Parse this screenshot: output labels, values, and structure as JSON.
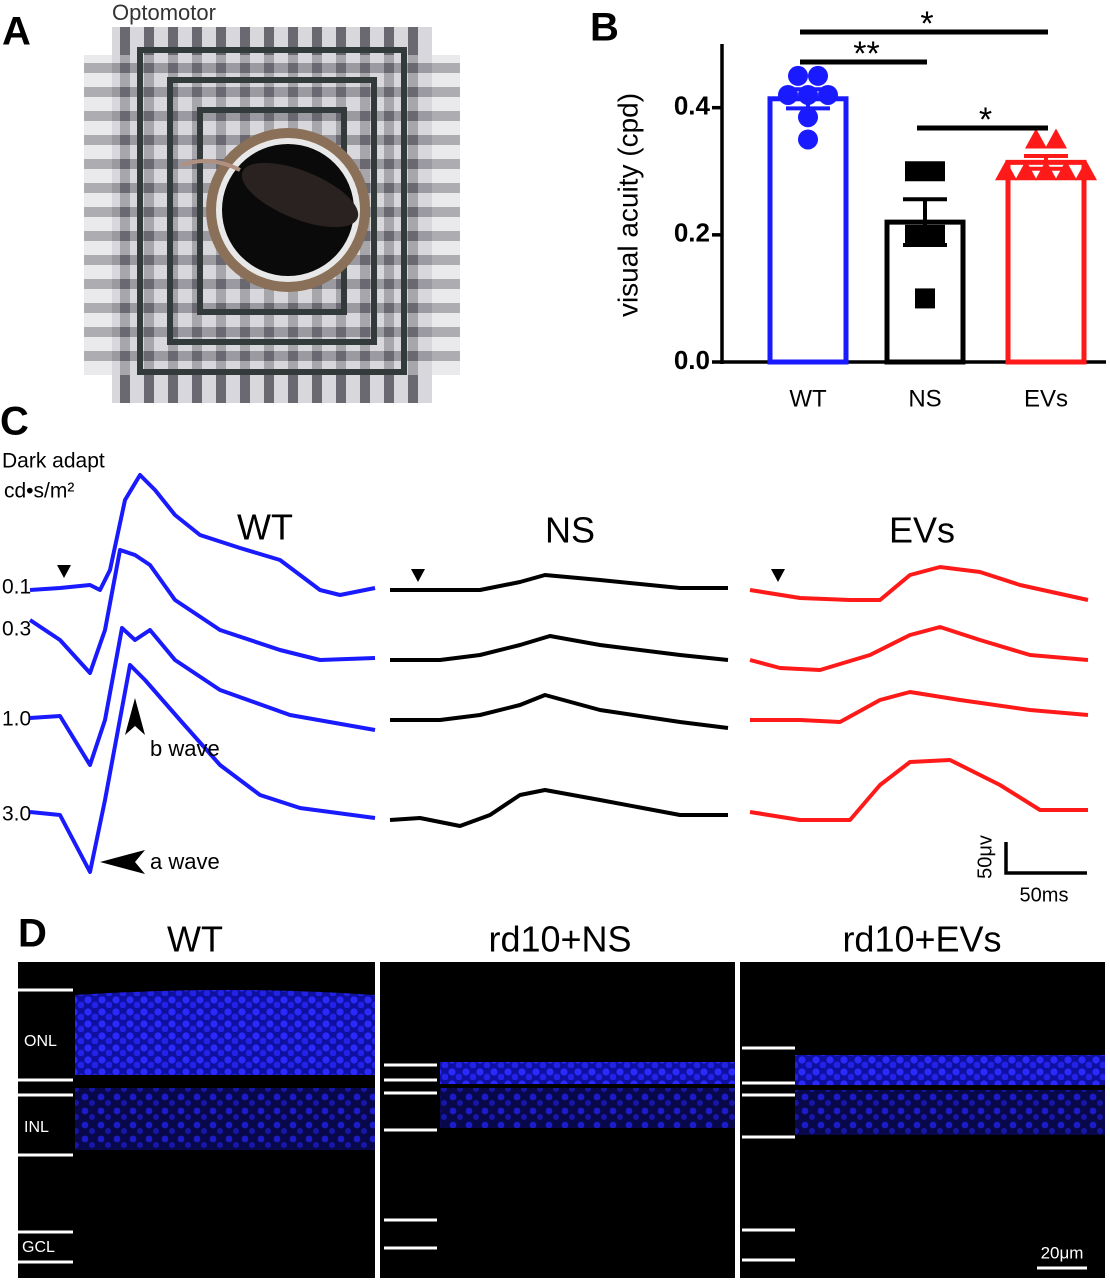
{
  "panel_labels": [
    "A",
    "B",
    "C",
    "D"
  ],
  "panel_a": {
    "title": "Optomotor"
  },
  "chart_data": {
    "type": "bar",
    "ylabel": "visual acuity (cpd)",
    "categories": [
      "WT",
      "NS",
      "EVs"
    ],
    "values": [
      0.414,
      0.22,
      0.314
    ],
    "errors": [
      0.015,
      0.036,
      0.01
    ],
    "points": [
      [
        0.45,
        0.45,
        0.42,
        0.42,
        0.42,
        0.385,
        0.35
      ],
      [
        0.3,
        0.3,
        0.2,
        0.2,
        0.1
      ],
      [
        0.35,
        0.35,
        0.3,
        0.3,
        0.3,
        0.3,
        0.3
      ]
    ],
    "markers": [
      "circle",
      "square",
      "triangle"
    ],
    "colors": [
      "#1a1aff",
      "#000000",
      "#ff1a1a"
    ],
    "ylim": [
      0,
      0.5
    ],
    "yticks": [
      {
        "value": 0,
        "label": "0.0"
      },
      {
        "value": 0.2,
        "label": "0.2"
      },
      {
        "value": 0.4,
        "label": "0.4"
      }
    ],
    "significance_labels": [
      "*",
      "**",
      "*"
    ]
  },
  "panel_c": {
    "condition": "Dark adapt",
    "unit": "cd•s/m²",
    "groups": [
      "WT",
      "NS",
      "EVs"
    ],
    "intensities": [
      "0.1",
      "0.3",
      "1.0",
      "3.0"
    ],
    "annotations": [
      "b wave",
      "a wave"
    ],
    "scale_y": "50μv",
    "scale_x": "50ms"
  },
  "panel_d": {
    "groups": [
      "WT",
      "rd10+NS",
      "rd10+EVs"
    ],
    "layers": [
      "ONL",
      "INL",
      "GCL"
    ],
    "scale_bar": "20μm"
  }
}
